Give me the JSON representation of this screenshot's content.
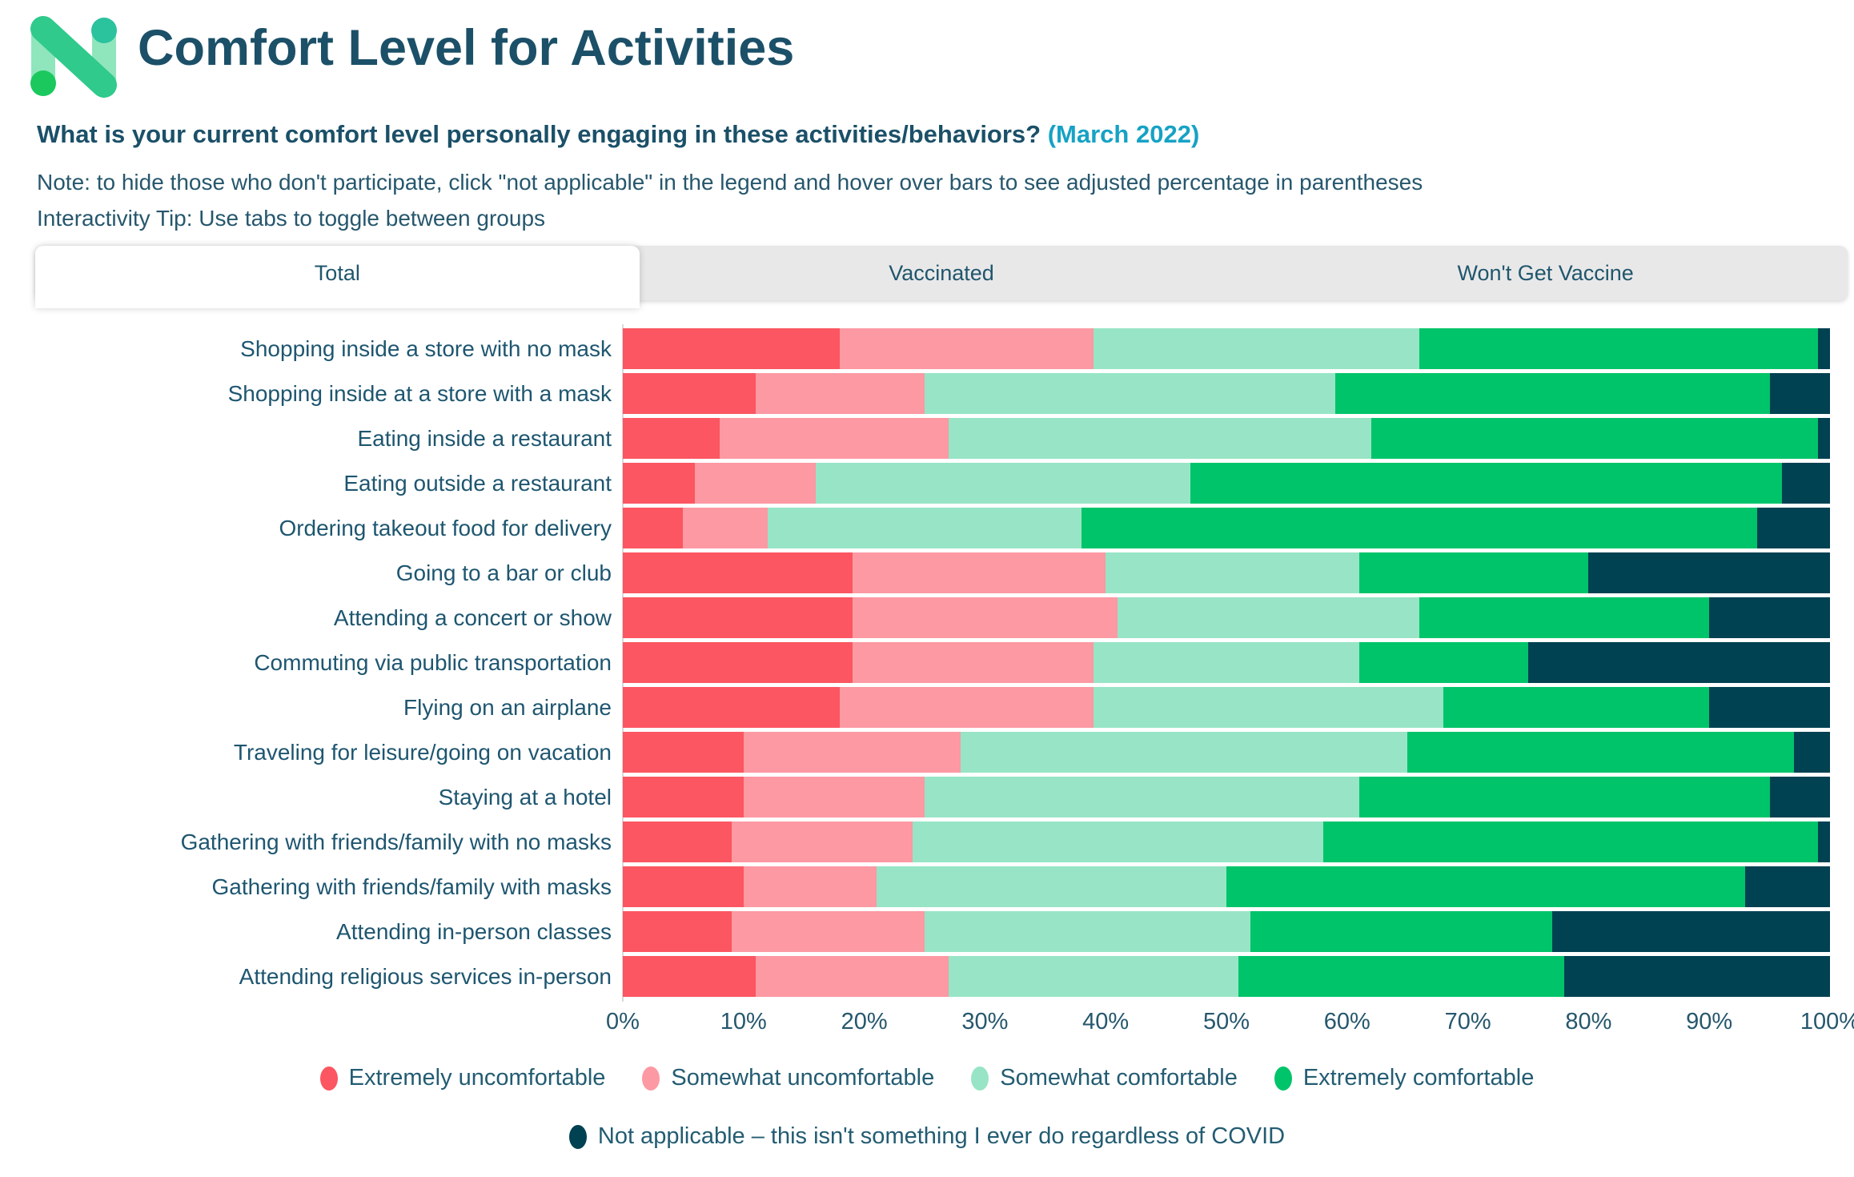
{
  "header": {
    "title": "Comfort Level for Activities",
    "question": "What is your current comfort level  personally engaging in these activities/behaviors?",
    "question_highlight": "(March 2022)",
    "note": "Note: to hide those who don't participate, click \"not applicable\" in the legend and hover over bars to see adjusted percentage in parentheses",
    "tip": "Interactivity Tip: Use tabs to toggle between groups",
    "logo_name": "numerator-n-logo"
  },
  "tabs": [
    {
      "label": "Total",
      "active": true
    },
    {
      "label": "Vaccinated",
      "active": false
    },
    {
      "label": "Won't Get Vaccine",
      "active": false
    }
  ],
  "colors": {
    "extremely_uncomfortable": "#FB5661",
    "somewhat_uncomfortable": "#FC99A3",
    "somewhat_comfortable": "#97E5C6",
    "extremely_comfortable": "#00C46A",
    "not_applicable": "#004152",
    "title_text": "#1B5068",
    "body_text": "#26576D",
    "highlight_text": "#16A2C5",
    "tab_gray": "#E9E8E9",
    "axis_line": "#D9D9D9"
  },
  "chart_data": {
    "type": "bar",
    "stacked": true,
    "horizontal": true,
    "title": "Comfort Level for Activities",
    "group_shown": "Total",
    "unit": "%",
    "xlim": [
      0,
      100
    ],
    "x_ticks": [
      "0%",
      "10%",
      "20%",
      "30%",
      "40%",
      "50%",
      "60%",
      "70%",
      "80%",
      "90%",
      "100%"
    ],
    "grid": false,
    "legend_position": "bottom",
    "categories": [
      "Shopping inside a store with no mask",
      "Shopping inside at a store with a mask",
      "Eating inside a restaurant",
      "Eating outside a restaurant",
      "Ordering takeout food for delivery",
      "Going to a bar or club",
      "Attending a concert or show",
      "Commuting via public transportation",
      "Flying on an airplane",
      "Traveling for leisure/going on vacation",
      "Staying at a hotel",
      "Gathering with friends/family with no masks",
      "Gathering with friends/family with masks",
      "Attending in-person classes",
      "Attending religious services in-person"
    ],
    "series": [
      {
        "name": "Extremely uncomfortable",
        "color": "#FB5661",
        "values": [
          18,
          11,
          8,
          6,
          5,
          19,
          19,
          19,
          18,
          10,
          10,
          9,
          10,
          9,
          11
        ]
      },
      {
        "name": "Somewhat uncomfortable",
        "color": "#FC99A3",
        "values": [
          21,
          14,
          19,
          10,
          7,
          21,
          22,
          20,
          21,
          18,
          15,
          15,
          11,
          16,
          16
        ]
      },
      {
        "name": "Somewhat comfortable",
        "color": "#97E5C6",
        "values": [
          27,
          34,
          35,
          31,
          26,
          21,
          25,
          22,
          29,
          37,
          36,
          34,
          29,
          27,
          24
        ]
      },
      {
        "name": "Extremely comfortable",
        "color": "#00C46A",
        "values": [
          33,
          36,
          37,
          49,
          56,
          19,
          24,
          14,
          22,
          32,
          34,
          41,
          43,
          25,
          27
        ]
      },
      {
        "name": "Not applicable – this isn't something I ever do regardless of COVID",
        "color": "#004152",
        "values": [
          1,
          5,
          1,
          4,
          6,
          20,
          10,
          25,
          10,
          3,
          5,
          1,
          7,
          23,
          22
        ]
      }
    ]
  }
}
